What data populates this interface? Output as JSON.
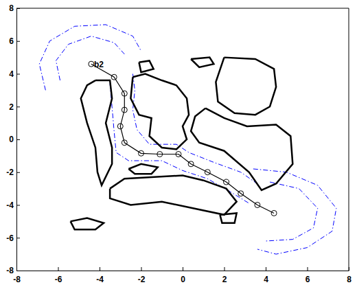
{
  "chart_data": {
    "type": "line",
    "xlim": [
      -8,
      8
    ],
    "ylim": [
      -8,
      8
    ],
    "xticks": [
      -8,
      -6,
      -4,
      -2,
      0,
      2,
      4,
      6,
      8
    ],
    "yticks": [
      -8,
      -6,
      -4,
      -2,
      0,
      2,
      4,
      6,
      8
    ],
    "annotations": [
      {
        "text": "b2",
        "x": -4.4,
        "y": 4.6
      }
    ],
    "series": [
      {
        "color": "#0000ff",
        "line_style": "dashdot",
        "marker": "none",
        "x": [
          -6.6,
          -6.9,
          -6.4,
          -5.2,
          -3.7,
          -2.4,
          -2.0
        ],
        "y": [
          3.0,
          4.6,
          6.0,
          6.9,
          7.0,
          6.3,
          5.4
        ]
      },
      {
        "color": "#0000ff",
        "line_style": "dashdot",
        "marker": "none",
        "x": [
          -5.9,
          -6.1,
          -5.5,
          -4.4,
          -3.3,
          -2.8
        ],
        "y": [
          3.6,
          4.8,
          5.8,
          6.3,
          5.9,
          5.2
        ]
      },
      {
        "color": "#0000ff",
        "line_style": "dashdot",
        "marker": "none",
        "x": [
          3.4,
          5.0,
          6.5,
          7.4,
          7.2,
          6.0,
          4.5,
          3.6
        ],
        "y": [
          -1.8,
          -2.0,
          -2.8,
          -4.2,
          -5.6,
          -6.6,
          -7.0,
          -6.7
        ]
      },
      {
        "color": "#0000ff",
        "line_style": "dashdot",
        "marker": "none",
        "x": [
          4.2,
          5.6,
          6.5,
          6.3,
          5.3,
          4.0
        ],
        "y": [
          -2.6,
          -3.0,
          -4.2,
          -5.4,
          -6.1,
          -6.2
        ]
      },
      {
        "color": "#0000ff",
        "line_style": "dashdot",
        "marker": "none",
        "x": [
          -2.4,
          -2.3,
          -2.4,
          -2.2,
          -1.6,
          -0.3,
          0.3,
          1.5,
          2.8,
          3.7
        ],
        "y": [
          4.0,
          3.0,
          1.8,
          0.6,
          -0.3,
          -0.3,
          -0.8,
          -1.4,
          -2.0,
          -2.8
        ]
      },
      {
        "color": "#0000ff",
        "line_style": "dashdot",
        "marker": "none",
        "x": [
          -3.5,
          -3.4,
          -3.3,
          -3.2,
          -2.6,
          -1.0,
          0.0,
          1.2,
          2.3,
          3.2
        ],
        "y": [
          3.4,
          2.0,
          0.5,
          -0.8,
          -1.3,
          -1.3,
          -1.9,
          -2.4,
          -3.2,
          -3.9
        ]
      },
      {
        "color": "#000000",
        "line_style": "solid",
        "marker": "none",
        "x": [
          -4.2,
          -3.5,
          -3.4,
          -3.7,
          -3.4,
          -3.4,
          -3.9,
          -4.1,
          -4.2,
          -4.6,
          -4.9,
          -4.6,
          -4.2
        ],
        "y": [
          3.6,
          3.6,
          2.5,
          1.0,
          -0.5,
          -1.5,
          -2.8,
          -2.0,
          -0.5,
          1.0,
          2.5,
          3.3,
          3.6
        ]
      },
      {
        "color": "#000000",
        "line_style": "solid",
        "marker": "none",
        "x": [
          -2.4,
          -1.8,
          -1.0,
          -0.3,
          0.2,
          0.3,
          0.0,
          0.2,
          -0.3,
          -1.0,
          -1.6,
          -1.5,
          -2.1,
          -2.5,
          -2.4
        ],
        "y": [
          3.8,
          4.0,
          3.6,
          3.3,
          2.5,
          1.5,
          0.8,
          0.0,
          -0.6,
          -0.5,
          0.2,
          1.3,
          1.5,
          2.5,
          3.8
        ]
      },
      {
        "color": "#000000",
        "line_style": "solid",
        "marker": "none",
        "x": [
          -2.1,
          -1.6,
          -1.4,
          -2.0,
          -2.1
        ],
        "y": [
          4.7,
          4.8,
          4.3,
          4.1,
          4.7
        ]
      },
      {
        "color": "#000000",
        "line_style": "solid",
        "marker": "none",
        "x": [
          0.4,
          1.3,
          1.5,
          0.8,
          0.4
        ],
        "y": [
          4.9,
          5.0,
          4.6,
          4.4,
          4.9
        ]
      },
      {
        "color": "#000000",
        "line_style": "solid",
        "marker": "none",
        "x": [
          2.0,
          3.5,
          4.4,
          4.5,
          4.2,
          3.5,
          2.5,
          1.7,
          1.6,
          2.0
        ],
        "y": [
          5.0,
          4.9,
          4.3,
          3.2,
          2.0,
          1.5,
          1.6,
          2.3,
          3.5,
          5.0
        ]
      },
      {
        "color": "#000000",
        "line_style": "solid",
        "marker": "none",
        "x": [
          1.1,
          2.0,
          3.1,
          4.5,
          5.2,
          5.3,
          4.5,
          3.8,
          3.2,
          2.0,
          0.8,
          0.4,
          0.6,
          1.1
        ],
        "y": [
          1.9,
          1.3,
          0.8,
          0.9,
          0.2,
          -1.5,
          -2.7,
          -3.1,
          -2.0,
          -0.7,
          -0.2,
          0.5,
          1.4,
          1.9
        ]
      },
      {
        "color": "#000000",
        "line_style": "solid",
        "marker": "none",
        "x": [
          -3.5,
          -2.8,
          -1.5,
          0.0,
          1.0,
          2.1,
          2.6,
          2.0,
          0.5,
          -1.0,
          -2.5,
          -3.5,
          -3.5
        ],
        "y": [
          -3.0,
          -2.4,
          -2.3,
          -2.2,
          -2.5,
          -3.0,
          -3.8,
          -4.6,
          -4.2,
          -3.8,
          -4.0,
          -3.6,
          -3.0
        ]
      },
      {
        "color": "#000000",
        "line_style": "solid",
        "marker": "none",
        "x": [
          -2.6,
          -2.0,
          -1.2,
          -1.5,
          -2.3,
          -2.6
        ],
        "y": [
          -1.8,
          -1.5,
          -1.7,
          -2.1,
          -2.1,
          -1.8
        ]
      },
      {
        "color": "#000000",
        "line_style": "solid",
        "marker": "none",
        "x": [
          -5.4,
          -4.6,
          -3.8,
          -4.2,
          -5.2,
          -5.4
        ],
        "y": [
          -5.0,
          -4.8,
          -5.1,
          -5.5,
          -5.5,
          -5.0
        ]
      },
      {
        "color": "#000000",
        "line_style": "solid",
        "marker": "none",
        "x": [
          1.8,
          2.6,
          2.5,
          1.9,
          1.8
        ],
        "y": [
          -4.6,
          -4.5,
          -5.1,
          -5.1,
          -4.6
        ]
      },
      {
        "color": "#000000",
        "line_style": "solid",
        "marker": "circle",
        "x": [
          4.4,
          3.6,
          2.8,
          2.1,
          1.2,
          0.4,
          -0.2,
          -1.1,
          -2.0,
          -2.8,
          -3.0,
          -2.8,
          -2.8,
          -3.3,
          -4.4
        ],
        "y": [
          -4.5,
          -4.0,
          -3.3,
          -2.6,
          -2.0,
          -1.5,
          -0.9,
          -0.9,
          -0.85,
          -0.2,
          0.8,
          1.8,
          2.8,
          3.8,
          4.6
        ]
      }
    ]
  }
}
